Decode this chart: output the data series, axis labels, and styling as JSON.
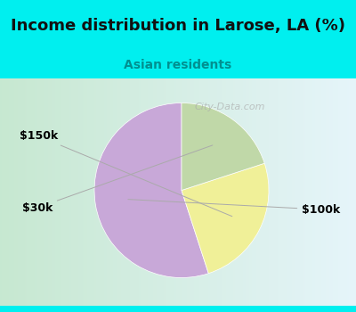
{
  "title": "Income distribution in Larose, LA (%)",
  "subtitle": "Asian residents",
  "title_color": "#111111",
  "subtitle_color": "#009090",
  "bg_cyan": "#00EFEF",
  "bg_panel_left": "#c8e8d0",
  "bg_panel_right": "#e8f4f8",
  "slices": [
    {
      "label": "$100k",
      "value": 55,
      "color": "#c8a8d8"
    },
    {
      "label": "$150k",
      "value": 25,
      "color": "#f0f098"
    },
    {
      "label": "$30k",
      "value": 20,
      "color": "#c0d8a8"
    }
  ],
  "startangle": 90,
  "watermark": "City-Data.com",
  "title_fontsize": 13,
  "subtitle_fontsize": 10,
  "label_fontsize": 9
}
